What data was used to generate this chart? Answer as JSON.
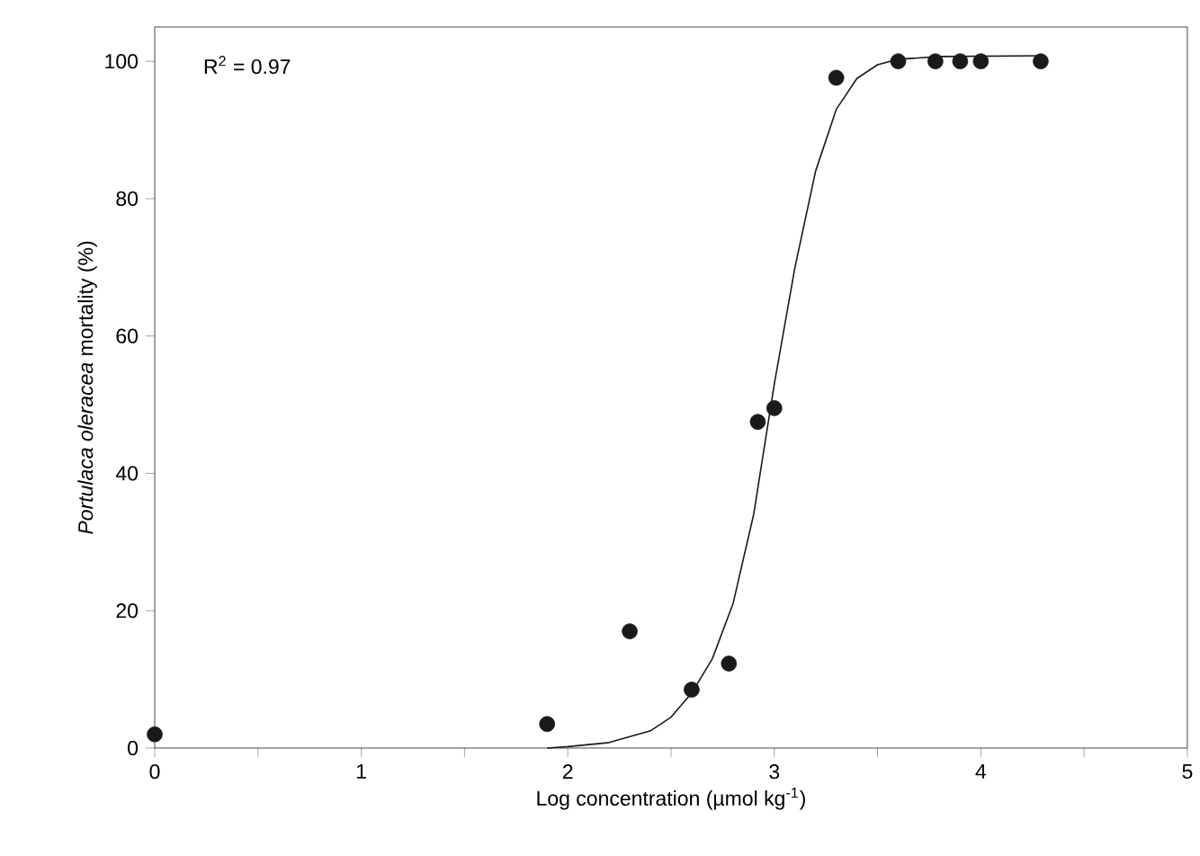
{
  "chart_data": {
    "type": "scatter",
    "xlabel": "Log concentration (µmol kg$^{-1}$)",
    "ylabel": "*Portulaca oleracea* mortality (%)",
    "annotations": [
      "R$^{2}$ = 0.97"
    ],
    "xlim": [
      0,
      5
    ],
    "ylim": [
      0,
      105
    ],
    "xticks": [
      0,
      {
        "value": 0.5,
        "label": null
      },
      1,
      {
        "value": 1.5,
        "label": null
      },
      2,
      {
        "value": 2.5,
        "label": null
      },
      3,
      {
        "value": 3.5,
        "label": null
      },
      4,
      {
        "value": 4.5,
        "label": null
      },
      5
    ],
    "yticks": [
      0,
      20,
      40,
      60,
      80,
      100
    ],
    "series": [
      {
        "type": "scatter",
        "marker": "circle",
        "color": "#1a1a1a",
        "x": [
          0,
          1.9,
          2.3,
          2.6,
          2.78,
          2.92,
          3.0,
          3.3,
          3.6,
          3.78,
          3.9,
          4.0,
          4.29
        ],
        "values": [
          2,
          3.5,
          17,
          8.5,
          12.3,
          47.5,
          49.5,
          97.6,
          100,
          100,
          100,
          100,
          100
        ]
      },
      {
        "type": "line",
        "color": "#1a1a1a",
        "marker": "none",
        "line_style": "solid",
        "x": [
          1.9,
          2.0,
          2.2,
          2.4,
          2.5,
          2.6,
          2.7,
          2.8,
          2.9,
          3.0,
          3.1,
          3.2,
          3.3,
          3.4,
          3.5,
          3.6,
          3.8,
          4.29
        ],
        "values": [
          0,
          0.2,
          0.8,
          2.5,
          4.5,
          8,
          13,
          21,
          34,
          53,
          70,
          84,
          93,
          97.5,
          99.5,
          100.3,
          100.7,
          100.8
        ]
      }
    ]
  }
}
